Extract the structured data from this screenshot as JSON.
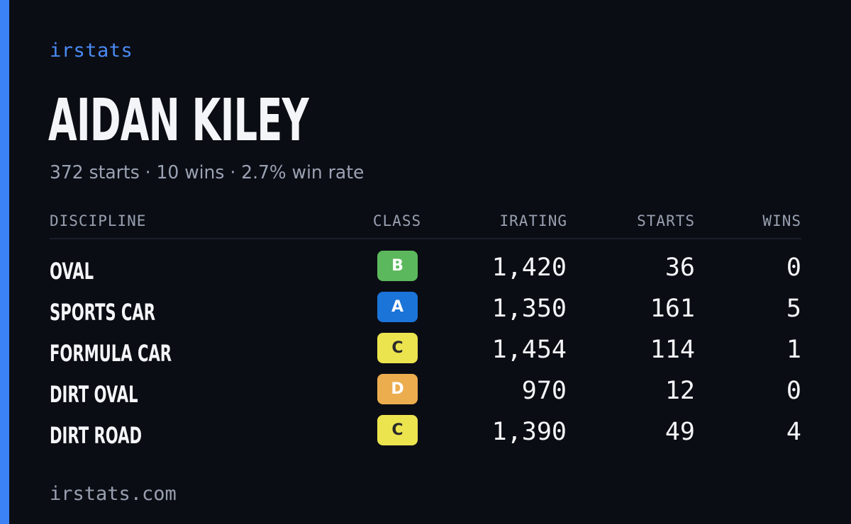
{
  "brand": "irstats",
  "player": {
    "name": "AIDAN KILEY",
    "summary": "372 starts · 10 wins · 2.7% win rate"
  },
  "table": {
    "headers": {
      "discipline": "DISCIPLINE",
      "class": "CLASS",
      "irating": "IRATING",
      "starts": "STARTS",
      "wins": "WINS"
    },
    "rows": [
      {
        "discipline": "OVAL",
        "class": "B",
        "class_color": "#5cb85c",
        "class_text_color": "#ffffff",
        "irating": "1,420",
        "starts": "36",
        "wins": "0"
      },
      {
        "discipline": "SPORTS CAR",
        "class": "A",
        "class_color": "#1b74d8",
        "class_text_color": "#ffffff",
        "irating": "1,350",
        "starts": "161",
        "wins": "5"
      },
      {
        "discipline": "FORMULA CAR",
        "class": "C",
        "class_color": "#ece44f",
        "class_text_color": "#2a2a2a",
        "irating": "1,454",
        "starts": "114",
        "wins": "1"
      },
      {
        "discipline": "DIRT OVAL",
        "class": "D",
        "class_color": "#ecad4f",
        "class_text_color": "#ffffff",
        "irating": "970",
        "starts": "12",
        "wins": "0"
      },
      {
        "discipline": "DIRT ROAD",
        "class": "C",
        "class_color": "#ece44f",
        "class_text_color": "#2a2a2a",
        "irating": "1,390",
        "starts": "49",
        "wins": "4"
      }
    ]
  },
  "footer": "irstats.com",
  "colors": {
    "accent": "#3b82f6",
    "background": "#0b0d14"
  }
}
